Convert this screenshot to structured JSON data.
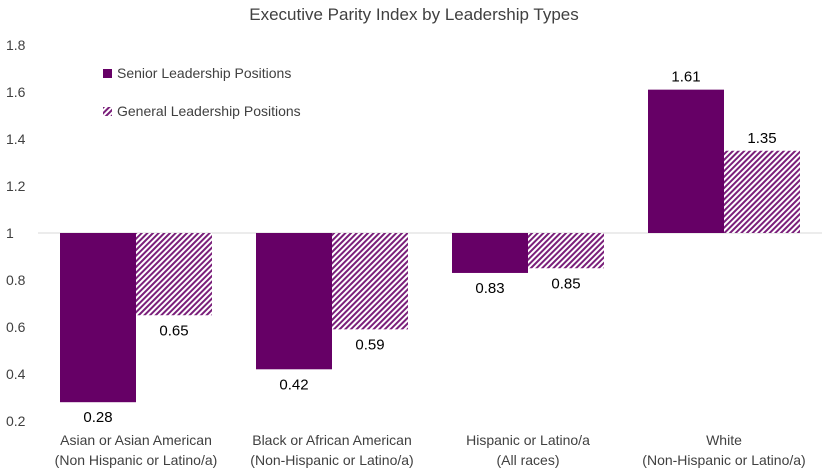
{
  "chart_data": {
    "type": "bar",
    "title": "Executive Parity Index by Leadership Types",
    "baseline": 1,
    "ylim": [
      0.2,
      1.8
    ],
    "yticks": [
      0.2,
      0.4,
      0.6,
      0.8,
      1,
      1.2,
      1.4,
      1.6,
      1.8
    ],
    "ytick_labels": [
      "0.2",
      "0.4",
      "0.6",
      "0.8",
      "1",
      "1.2",
      "1.4",
      "1.6",
      "1.8"
    ],
    "categories": [
      [
        "Asian or Asian American",
        "(Non Hispanic or Latino/a)"
      ],
      [
        "Black or African American",
        "(Non-Hispanic or Latino/a)"
      ],
      [
        "Hispanic or Latino/a",
        "(All races)"
      ],
      [
        "White",
        "(Non-Hispanic or Latino/a)"
      ]
    ],
    "series": [
      {
        "name": "Senior Leadership Positions",
        "style": "solid",
        "values": [
          0.28,
          0.42,
          0.83,
          1.61
        ],
        "labels": [
          "0.28",
          "0.42",
          "0.83",
          "1.61"
        ]
      },
      {
        "name": "General Leadership Positions",
        "style": "hatched",
        "values": [
          0.65,
          0.59,
          0.85,
          1.35
        ],
        "labels": [
          "0.65",
          "0.59",
          "0.85",
          "1.35"
        ]
      }
    ],
    "legend": "top-left",
    "grid": false,
    "colors": {
      "primary": "#660066",
      "hatch": "#7a1f7a",
      "axis": "#d9d9d9",
      "text": "#404040"
    }
  }
}
